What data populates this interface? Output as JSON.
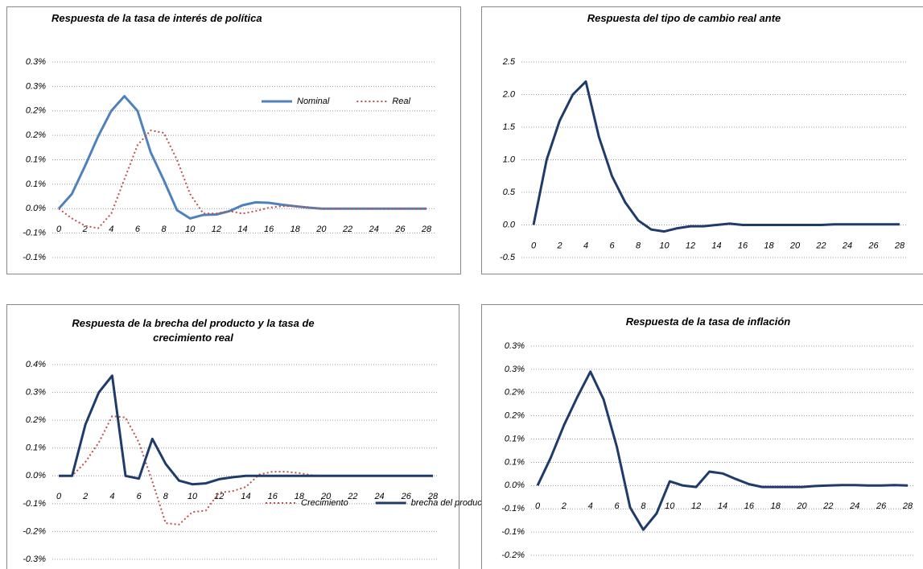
{
  "chart_data": [
    {
      "type": "line",
      "title": "Respuesta de la tasa de interés de política",
      "x": [
        0,
        1,
        2,
        3,
        4,
        5,
        6,
        7,
        8,
        9,
        10,
        11,
        12,
        13,
        14,
        15,
        16,
        17,
        18,
        19,
        20,
        21,
        22,
        23,
        24,
        25,
        26,
        27,
        28
      ],
      "xlim": [
        0,
        28
      ],
      "xticks": [
        0,
        2,
        4,
        6,
        8,
        10,
        12,
        14,
        16,
        18,
        20,
        22,
        24,
        26,
        28
      ],
      "ylim": [
        -0.1,
        0.3
      ],
      "yticks": [
        {
          "value": 0.3,
          "label": "0.3%"
        },
        {
          "value": 0.25,
          "label": "0.3%"
        },
        {
          "value": 0.2,
          "label": "0.2%"
        },
        {
          "value": 0.15,
          "label": "0.2%"
        },
        {
          "value": 0.1,
          "label": "0.1%"
        },
        {
          "value": 0.05,
          "label": "0.1%"
        },
        {
          "value": 0,
          "label": "0.0%"
        },
        {
          "value": -0.05,
          "label": "-0.1%"
        },
        {
          "value": -0.1,
          "label": "-0.1%"
        }
      ],
      "grid": true,
      "legend": "upper right",
      "series": [
        {
          "name": "Nominal",
          "color": "#4f81bd",
          "style": "solid",
          "values": [
            0,
            0.03,
            0.087,
            0.148,
            0.2,
            0.23,
            0.2,
            0.115,
            0.058,
            -0.003,
            -0.02,
            -0.013,
            -0.012,
            -0.005,
            0.007,
            0.013,
            0.012,
            0.008,
            0.005,
            0.002,
            0,
            0,
            0,
            0,
            0,
            0,
            0,
            0,
            0
          ]
        },
        {
          "name": "Real",
          "color": "#c0504d",
          "style": "dotted",
          "values": [
            0,
            -0.02,
            -0.035,
            -0.04,
            -0.01,
            0.06,
            0.13,
            0.16,
            0.155,
            0.1,
            0.03,
            -0.01,
            -0.01,
            -0.005,
            -0.01,
            -0.005,
            0.002,
            0.005,
            0.005,
            0.003,
            0,
            0,
            0,
            0,
            0,
            0,
            0,
            0,
            0
          ]
        }
      ]
    },
    {
      "type": "line",
      "title": "Respuesta del tipo de cambio real ante",
      "x": [
        0,
        1,
        2,
        3,
        4,
        5,
        6,
        7,
        8,
        9,
        10,
        11,
        12,
        13,
        14,
        15,
        16,
        17,
        18,
        19,
        20,
        21,
        22,
        23,
        24,
        25,
        26,
        27,
        28
      ],
      "xlim": [
        0,
        28
      ],
      "xticks": [
        0,
        2,
        4,
        6,
        8,
        10,
        12,
        14,
        16,
        18,
        20,
        22,
        24,
        26,
        28
      ],
      "ylim": [
        -0.5,
        2.5
      ],
      "yticks": [
        {
          "value": 2.5,
          "label": "2.5"
        },
        {
          "value": 2,
          "label": "2.0"
        },
        {
          "value": 1.5,
          "label": "1.5"
        },
        {
          "value": 1,
          "label": "1.0"
        },
        {
          "value": 0.5,
          "label": "0.5"
        },
        {
          "value": 0,
          "label": "0.0"
        },
        {
          "value": -0.5,
          "label": "-0.5"
        }
      ],
      "grid": true,
      "color": "#1f3b6b",
      "values": [
        0,
        1.0,
        1.6,
        2.0,
        2.2,
        1.35,
        0.75,
        0.35,
        0.07,
        -0.07,
        -0.1,
        -0.05,
        -0.02,
        -0.02,
        0,
        0.02,
        0,
        0,
        0,
        0,
        0,
        0,
        0,
        0.01,
        0.01,
        0.01,
        0.01,
        0.01,
        0.01
      ]
    },
    {
      "type": "line",
      "title": "Respuesta de la brecha del producto y la tasa de crecimiento real",
      "x": [
        0,
        1,
        2,
        3,
        4,
        5,
        6,
        7,
        8,
        9,
        10,
        11,
        12,
        13,
        14,
        15,
        16,
        17,
        18,
        19,
        20,
        21,
        22,
        23,
        24,
        25,
        26,
        27,
        28
      ],
      "xlim": [
        0,
        28
      ],
      "xticks": [
        0,
        2,
        4,
        6,
        8,
        10,
        12,
        14,
        16,
        18,
        20,
        22,
        24,
        26,
        28
      ],
      "ylim": [
        -0.3,
        0.4
      ],
      "yticks": [
        {
          "value": 0.4,
          "label": "0.4%"
        },
        {
          "value": 0.3,
          "label": "0.3%"
        },
        {
          "value": 0.2,
          "label": "0.2%"
        },
        {
          "value": 0.1,
          "label": "0.1%"
        },
        {
          "value": 0,
          "label": "0.0%"
        },
        {
          "value": -0.1,
          "label": "-0.1%"
        },
        {
          "value": -0.2,
          "label": "-0.2%"
        },
        {
          "value": -0.3,
          "label": "-0.3%"
        }
      ],
      "grid": true,
      "legend": "lower right",
      "series": [
        {
          "name": "Crecimiento",
          "color": "#c0504d",
          "style": "dotted",
          "values": [
            0,
            0,
            0.05,
            0.12,
            0.215,
            0.21,
            0.12,
            -0.02,
            -0.17,
            -0.175,
            -0.13,
            -0.125,
            -0.06,
            -0.055,
            -0.04,
            0.005,
            0.015,
            0.015,
            0.01,
            0.002,
            0,
            0,
            0,
            0,
            0,
            0,
            0,
            0,
            0
          ]
        },
        {
          "name": "brecha del producto",
          "color": "#1f3b6b",
          "style": "solid",
          "values": [
            0,
            0,
            0.185,
            0.3,
            0.36,
            0,
            -0.01,
            0.133,
            0.043,
            -0.017,
            -0.03,
            -0.027,
            -0.012,
            -0.005,
            0,
            0,
            0,
            0,
            0,
            0,
            0,
            0,
            0,
            0,
            0,
            0,
            0,
            0,
            0
          ]
        }
      ]
    },
    {
      "type": "line",
      "title": "Respuesta de la tasa de inflación",
      "x": [
        0,
        1,
        2,
        3,
        4,
        5,
        6,
        7,
        8,
        9,
        10,
        11,
        12,
        13,
        14,
        15,
        16,
        17,
        18,
        19,
        20,
        21,
        22,
        23,
        24,
        25,
        26,
        27,
        28
      ],
      "xlim": [
        0,
        28
      ],
      "xticks": [
        0,
        2,
        4,
        6,
        8,
        10,
        12,
        14,
        16,
        18,
        20,
        22,
        24,
        26,
        28
      ],
      "ylim": [
        -0.15,
        0.3
      ],
      "yticks": [
        {
          "value": 0.3,
          "label": "0.3%"
        },
        {
          "value": 0.25,
          "label": "0.3%"
        },
        {
          "value": 0.2,
          "label": "0.2%"
        },
        {
          "value": 0.15,
          "label": "0.2%"
        },
        {
          "value": 0.1,
          "label": "0.1%"
        },
        {
          "value": 0.05,
          "label": "0.1%"
        },
        {
          "value": 0,
          "label": "0.0%"
        },
        {
          "value": -0.05,
          "label": "-0.1%"
        },
        {
          "value": -0.1,
          "label": "-0.1%"
        },
        {
          "value": -0.15,
          "label": "-0.2%"
        }
      ],
      "grid": true,
      "color": "#1f3b6b",
      "values": [
        0,
        0.06,
        0.13,
        0.19,
        0.245,
        0.185,
        0.083,
        -0.047,
        -0.095,
        -0.06,
        0.009,
        0,
        -0.003,
        0.03,
        0.026,
        0.014,
        0.003,
        -0.003,
        -0.003,
        -0.003,
        -0.003,
        -0.001,
        0,
        0.001,
        0.001,
        0,
        0,
        0.001,
        0
      ]
    }
  ]
}
